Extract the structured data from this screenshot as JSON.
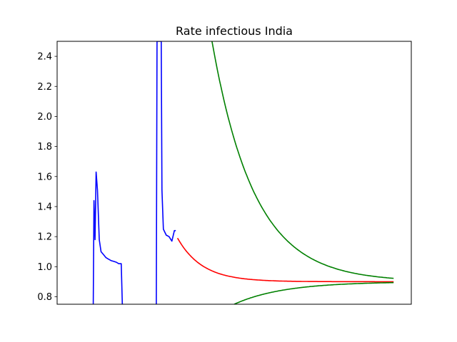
{
  "chart_data": {
    "type": "line",
    "title": "Rate infectious India",
    "xlabel": "",
    "ylabel": "",
    "x_ticks_visible": false,
    "xlim": [
      0,
      100
    ],
    "ylim": [
      0.75,
      2.5
    ],
    "yticks": [
      0.8,
      1.0,
      1.2,
      1.4,
      1.6,
      1.8,
      2.0,
      2.2,
      2.4
    ],
    "ytick_labels": [
      "0.8",
      "1.0",
      "1.2",
      "1.4",
      "1.6",
      "1.8",
      "2.0",
      "2.2",
      "2.4"
    ],
    "grid": false,
    "legend": "none",
    "series": [
      {
        "color": "#0000ff",
        "x": [
          10.2,
          10.4,
          10.7,
          11.0,
          11.4,
          11.9,
          12.4,
          13.1,
          13.8,
          14.5,
          15.3,
          16.0,
          16.7,
          17.4,
          18.1,
          18.4,
          18.6
        ],
        "y": [
          0.75,
          1.44,
          1.18,
          1.63,
          1.51,
          1.18,
          1.1,
          1.08,
          1.06,
          1.05,
          1.04,
          1.035,
          1.03,
          1.02,
          1.02,
          0.75,
          0.75
        ]
      },
      {
        "color": "#0000ff",
        "x": [
          28.0,
          28.2,
          28.9,
          29.4,
          29.6,
          30.0,
          30.8,
          31.6,
          32.4,
          33.1,
          33.5
        ],
        "y": [
          0.75,
          2.5,
          2.5,
          2.5,
          1.51,
          1.25,
          1.21,
          1.2,
          1.17,
          1.24,
          1.24
        ]
      }
    ],
    "curves": [
      {
        "color": "#ff0000",
        "x_start": 34.0,
        "x_end": 95.0,
        "asymptote": 0.9,
        "start_value": 1.19,
        "decay": 7.0
      },
      {
        "color": "#008000",
        "x_start": 34.0,
        "x_end": 95.0,
        "asymptote": 0.9,
        "start_value": 4.5,
        "decay": 12.0
      },
      {
        "color": "#008000",
        "x_start": 50.0,
        "x_end": 95.0,
        "asymptote": 0.9,
        "start_value": 0.75,
        "decay": 14.0
      }
    ]
  }
}
